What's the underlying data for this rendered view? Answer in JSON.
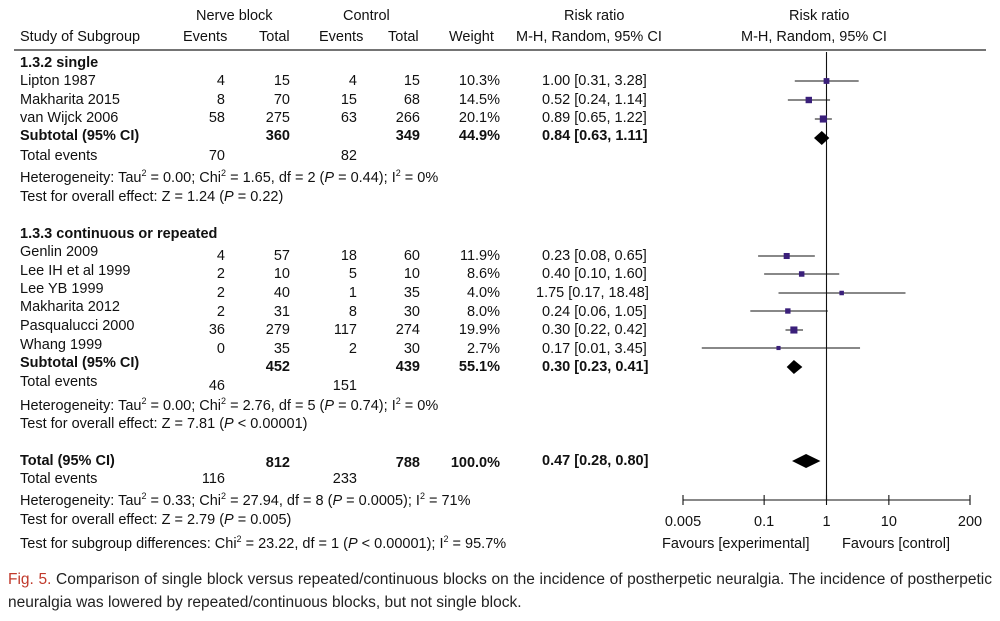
{
  "header": {
    "group1": "Nerve block",
    "group2": "Control",
    "ratio_top": "Risk ratio",
    "ratio_top_plot": "Risk ratio",
    "col_study": "Study of Subgroup",
    "col_events1": "Events",
    "col_total1": "Total",
    "col_events2": "Events",
    "col_total2": "Total",
    "col_weight": "Weight",
    "col_method": "M-H, Random, 95% CI",
    "col_method_plot": "M-H, Random, 95% CI"
  },
  "subgroup1": {
    "title": "1.3.2 single",
    "studies": [
      {
        "name": "Lipton 1987",
        "e1": "4",
        "t1": "15",
        "e2": "4",
        "t2": "15",
        "weight": "10.3%",
        "ci": "1.00 [0.31, 3.28]"
      },
      {
        "name": "Makharita 2015",
        "e1": "8",
        "t1": "70",
        "e2": "15",
        "t2": "68",
        "weight": "14.5%",
        "ci": "0.52 [0.24, 1.14]"
      },
      {
        "name": "van Wijck 2006",
        "e1": "58",
        "t1": "275",
        "e2": "63",
        "t2": "266",
        "weight": "20.1%",
        "ci": "0.89 [0.65, 1.22]"
      }
    ],
    "subtotal": {
      "label": "Subtotal (95% CI)",
      "t1": "360",
      "t2": "349",
      "weight": "44.9%",
      "ci": "0.84 [0.63, 1.11]"
    },
    "events": {
      "label": "Total events",
      "e1": "70",
      "e2": "82"
    },
    "het": {
      "a": "Heterogeneity: Tau",
      "b": " = 0.00; Chi",
      "c": " = 1.65, df = 2 (",
      "d": " = 0.44); I",
      "e": " = 0%"
    },
    "overall": {
      "a": "Test for overall effect: Z = 1.24 (",
      "b": " = 0.22)"
    }
  },
  "subgroup2": {
    "title": "1.3.3 continuous or repeated",
    "studies": [
      {
        "name": "Genlin 2009",
        "e1": "4",
        "t1": "57",
        "e2": "18",
        "t2": "60",
        "weight": "11.9%",
        "ci": "0.23 [0.08, 0.65]"
      },
      {
        "name": "Lee IH et al 1999",
        "e1": "2",
        "t1": "10",
        "e2": "5",
        "t2": "10",
        "weight": "8.6%",
        "ci": "0.40 [0.10, 1.60]"
      },
      {
        "name": "Lee YB 1999",
        "e1": "2",
        "t1": "40",
        "e2": "1",
        "t2": "35",
        "weight": "4.0%",
        "ci": "1.75 [0.17, 18.48]"
      },
      {
        "name": "Makharita 2012",
        "e1": "2",
        "t1": "31",
        "e2": "8",
        "t2": "30",
        "weight": "8.0%",
        "ci": "0.24 [0.06, 1.05]"
      },
      {
        "name": "Pasqualucci 2000",
        "e1": "36",
        "t1": "279",
        "e2": "117",
        "t2": "274",
        "weight": "19.9%",
        "ci": "0.30 [0.22, 0.42]"
      },
      {
        "name": "Whang 1999",
        "e1": "0",
        "t1": "35",
        "e2": "2",
        "t2": "30",
        "weight": "2.7%",
        "ci": "0.17 [0.01, 3.45]"
      }
    ],
    "subtotal": {
      "label": "Subtotal (95% CI)",
      "t1": "452",
      "t2": "439",
      "weight": "55.1%",
      "ci": "0.30 [0.23, 0.41]"
    },
    "events": {
      "label": "Total events",
      "e1": "46",
      "e2": "151"
    },
    "het": {
      "a": "Heterogeneity: Tau",
      "b": " = 0.00; Chi",
      "c": " = 2.76, df = 5 (",
      "d": " = 0.74); I",
      "e": " = 0%"
    },
    "overall": {
      "a": "Test for overall effect: Z = 7.81 (",
      "b": " < 0.00001)"
    }
  },
  "total": {
    "label": "Total (95% CI)",
    "t1": "812",
    "t2": "788",
    "weight": "100.0%",
    "ci": "0.47 [0.28, 0.80]",
    "events": {
      "label": "Total events",
      "e1": "116",
      "e2": "233"
    },
    "het": {
      "a": "Heterogeneity: Tau",
      "b": " = 0.33; Chi",
      "c": " = 27.94, df = 8 (",
      "d": " = 0.0005); I",
      "e": " = 71%"
    },
    "overall": {
      "a": "Test for overall effect: Z = 2.79 (",
      "b": " = 0.005)"
    },
    "subgroup_diff": {
      "a": "Test for subgroup differences: Chi",
      "b": " = 23.22, df = 1 (",
      "c": " < 0.00001); I",
      "d": " = 95.7%"
    }
  },
  "sym": {
    "sq": "2",
    "p": "P"
  },
  "axis": {
    "favours_left": "Favours [experimental]",
    "favours_right": "Favours [control]"
  },
  "caption": {
    "fig": "Fig. 5.",
    "text": " Comparison of single block versus repeated/continuous blocks on the incidence of postherpetic neuralgia. The incidence of postherpetic neuralgia was lowered by repeated/continuous blocks, but not single block."
  },
  "chart_data": {
    "type": "forest",
    "scale": "log",
    "xlim": [
      0.005,
      200
    ],
    "ticks": [
      0.005,
      0.1,
      1,
      10,
      200
    ],
    "tick_labels": [
      "0.005",
      "0.1",
      "1",
      "10",
      "200"
    ],
    "reference_line": 1,
    "studies": [
      {
        "est": 1.0,
        "lo": 0.31,
        "hi": 3.28,
        "weight": 10.3
      },
      {
        "est": 0.52,
        "lo": 0.24,
        "hi": 1.14,
        "weight": 14.5
      },
      {
        "est": 0.89,
        "lo": 0.65,
        "hi": 1.22,
        "weight": 20.1
      },
      {
        "est": 0.23,
        "lo": 0.08,
        "hi": 0.65,
        "weight": 11.9
      },
      {
        "est": 0.4,
        "lo": 0.1,
        "hi": 1.6,
        "weight": 8.6
      },
      {
        "est": 1.75,
        "lo": 0.17,
        "hi": 18.48,
        "weight": 4.0
      },
      {
        "est": 0.24,
        "lo": 0.06,
        "hi": 1.05,
        "weight": 8.0
      },
      {
        "est": 0.3,
        "lo": 0.22,
        "hi": 0.42,
        "weight": 19.9
      },
      {
        "est": 0.17,
        "lo": 0.01,
        "hi": 3.45,
        "weight": 2.7
      }
    ],
    "summaries": [
      {
        "est": 0.84,
        "lo": 0.63,
        "hi": 1.11
      },
      {
        "est": 0.3,
        "lo": 0.23,
        "hi": 0.41
      },
      {
        "est": 0.47,
        "lo": 0.28,
        "hi": 0.8
      }
    ],
    "colors": {
      "marker": "#3a1f7a",
      "line": "#111111"
    }
  }
}
